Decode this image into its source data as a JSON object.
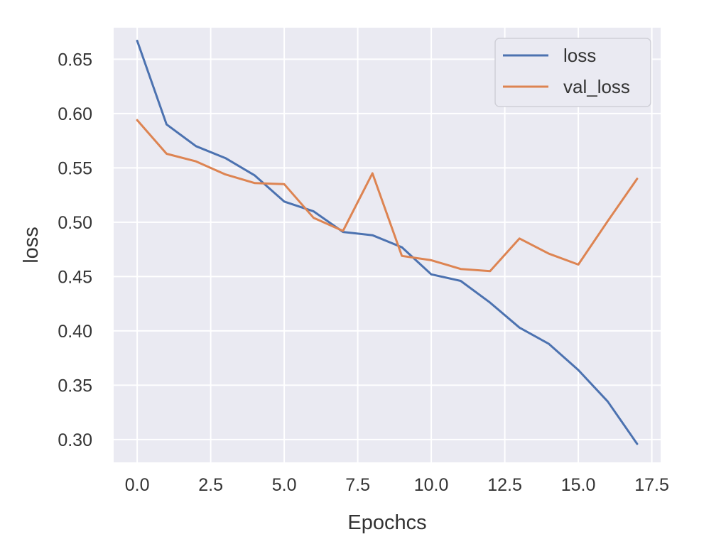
{
  "chart_data": {
    "type": "line",
    "title": "",
    "xlabel": "Epochcs",
    "ylabel": "loss",
    "xlim": [
      -0.8,
      17.8
    ],
    "ylim": [
      0.279,
      0.679
    ],
    "xticks": [
      0.0,
      2.5,
      5.0,
      7.5,
      10.0,
      12.5,
      15.0,
      17.5
    ],
    "xtick_labels": [
      "0.0",
      "2.5",
      "5.0",
      "7.5",
      "10.0",
      "12.5",
      "15.0",
      "17.5"
    ],
    "yticks": [
      0.3,
      0.35,
      0.4,
      0.45,
      0.5,
      0.55,
      0.6,
      0.65
    ],
    "ytick_labels": [
      "0.30",
      "0.35",
      "0.40",
      "0.45",
      "0.50",
      "0.55",
      "0.60",
      "0.65"
    ],
    "grid": true,
    "legend_position": "top-right",
    "background_color": "#EAEAF2",
    "x": [
      0,
      1,
      2,
      3,
      4,
      5,
      6,
      7,
      8,
      9,
      10,
      11,
      12,
      13,
      14,
      15,
      16,
      17
    ],
    "series": [
      {
        "name": "loss",
        "color": "#4C72B0",
        "values": [
          0.667,
          0.59,
          0.57,
          0.559,
          0.543,
          0.519,
          0.51,
          0.491,
          0.488,
          0.477,
          0.452,
          0.446,
          0.426,
          0.403,
          0.388,
          0.364,
          0.335,
          0.296
        ]
      },
      {
        "name": "val_loss",
        "color": "#DD8452",
        "values": [
          0.594,
          0.563,
          0.556,
          0.544,
          0.536,
          0.535,
          0.504,
          0.492,
          0.545,
          0.469,
          0.465,
          0.457,
          0.455,
          0.485,
          0.471,
          0.461,
          0.501,
          0.54
        ]
      }
    ]
  }
}
